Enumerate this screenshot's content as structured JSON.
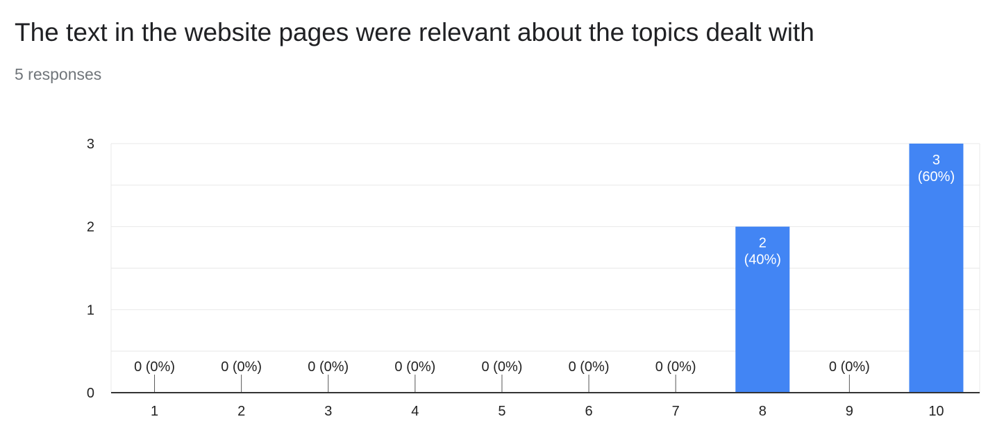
{
  "header": {
    "title": "The text in the website pages were relevant about the topics dealt with",
    "responses": "5 responses"
  },
  "colors": {
    "bar": "#4285f4",
    "grid": "#e8e8e8",
    "axis": "#333333"
  },
  "chart_data": {
    "type": "bar",
    "title": "The text in the website pages were relevant about the topics dealt with",
    "xlabel": "",
    "ylabel": "",
    "ylim": [
      0,
      3
    ],
    "yticks": [
      "0",
      "1",
      "2",
      "3"
    ],
    "categories": [
      "1",
      "2",
      "3",
      "4",
      "5",
      "6",
      "7",
      "8",
      "9",
      "10"
    ],
    "values": [
      0,
      0,
      0,
      0,
      0,
      0,
      0,
      2,
      0,
      3
    ],
    "labels": [
      "0 (0%)",
      "0 (0%)",
      "0 (0%)",
      "0 (0%)",
      "0 (0%)",
      "0 (0%)",
      "0 (0%)",
      "2\n(40%)",
      "0 (0%)",
      "3\n(60%)"
    ]
  }
}
